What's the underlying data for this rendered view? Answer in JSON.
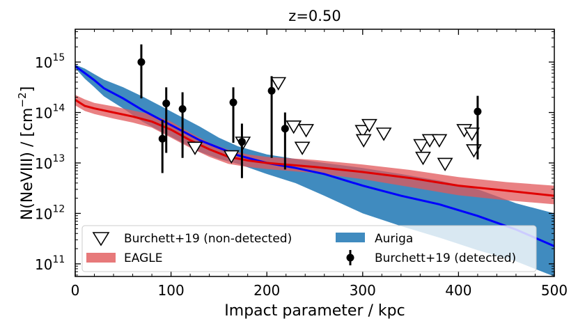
{
  "chart_data": {
    "type": "line",
    "title": "z=0.50",
    "xlabel": "Impact parameter / kpc",
    "ylabel": "N(NeVIII) / [cm",
    "ylabel_exponent": "−2",
    "ylabel_close": "]",
    "xlim": [
      0,
      500
    ],
    "ylim_log10": [
      10.75,
      15.65
    ],
    "x_ticks": [
      0,
      100,
      200,
      300,
      400,
      500
    ],
    "x_tick_labels": [
      "0",
      "100",
      "200",
      "300",
      "400",
      "500"
    ],
    "y_ticks_log10": [
      11,
      12,
      13,
      14,
      15
    ],
    "y_tick_base": "10",
    "y_tick_exponents": [
      "11",
      "12",
      "13",
      "14",
      "15"
    ],
    "series": [
      {
        "name": "Auriga",
        "kind": "band+median",
        "band_color": "#1f77b4",
        "line_color": "#0000ff",
        "x": [
          0,
          10,
          20,
          30,
          50,
          70,
          90,
          110,
          130,
          150,
          170,
          200,
          230,
          260,
          300,
          340,
          380,
          420,
          460,
          500
        ],
        "median": [
          14.92,
          14.78,
          14.64,
          14.48,
          14.28,
          14.05,
          13.85,
          13.65,
          13.45,
          13.3,
          13.15,
          13.0,
          12.9,
          12.78,
          12.55,
          12.35,
          12.18,
          11.95,
          11.68,
          11.35
        ],
        "upper": [
          14.95,
          14.87,
          14.76,
          14.65,
          14.5,
          14.32,
          14.12,
          13.92,
          13.72,
          13.5,
          13.33,
          13.17,
          13.08,
          13.0,
          12.9,
          12.78,
          12.65,
          12.48,
          12.2,
          12.0
        ],
        "lower": [
          14.88,
          14.67,
          14.5,
          14.32,
          14.08,
          13.82,
          13.62,
          13.42,
          13.22,
          13.08,
          12.98,
          12.78,
          12.6,
          12.35,
          12.0,
          11.75,
          11.52,
          11.27,
          11.05,
          10.75
        ]
      },
      {
        "name": "EAGLE",
        "kind": "band+median",
        "band_color": "#e15759",
        "line_color": "#e00000",
        "x": [
          0,
          10,
          20,
          40,
          60,
          80,
          100,
          120,
          140,
          160,
          180,
          200,
          250,
          300,
          350,
          400,
          450,
          500
        ],
        "median": [
          14.25,
          14.13,
          14.08,
          14.0,
          13.92,
          13.82,
          13.66,
          13.45,
          13.27,
          13.12,
          13.05,
          13.0,
          12.92,
          12.82,
          12.7,
          12.55,
          12.45,
          12.35
        ],
        "upper": [
          14.35,
          14.26,
          14.19,
          14.12,
          14.04,
          13.96,
          13.82,
          13.6,
          13.4,
          13.26,
          13.17,
          13.12,
          13.06,
          12.97,
          12.86,
          12.72,
          12.62,
          12.55
        ],
        "lower": [
          14.14,
          14.03,
          13.97,
          13.88,
          13.8,
          13.7,
          13.5,
          13.3,
          13.12,
          12.98,
          12.92,
          12.88,
          12.8,
          12.68,
          12.52,
          12.36,
          12.26,
          12.18
        ]
      }
    ],
    "detected": {
      "name": "Burchett+19 (detected)",
      "points": [
        {
          "x": 69,
          "y": 15.0,
          "lo": 14.28,
          "hi": 15.35
        },
        {
          "x": 91,
          "y": 13.48,
          "lo": 12.8,
          "hi": 13.85
        },
        {
          "x": 95,
          "y": 14.18,
          "lo": 13.2,
          "hi": 14.5
        },
        {
          "x": 112,
          "y": 14.07,
          "lo": 13.1,
          "hi": 14.4
        },
        {
          "x": 165,
          "y": 14.2,
          "lo": 13.4,
          "hi": 14.5
        },
        {
          "x": 174,
          "y": 13.42,
          "lo": 12.7,
          "hi": 13.78
        },
        {
          "x": 205,
          "y": 14.43,
          "lo": 13.1,
          "hi": 14.72
        },
        {
          "x": 219,
          "y": 13.68,
          "lo": 12.87,
          "hi": 14.0
        },
        {
          "x": 420,
          "y": 14.02,
          "lo": 13.07,
          "hi": 14.33
        }
      ]
    },
    "non_detected": {
      "name": "Burchett+19 (non-detected)",
      "points": [
        {
          "x": 125,
          "y": 13.3
        },
        {
          "x": 163,
          "y": 13.13
        },
        {
          "x": 175,
          "y": 13.4
        },
        {
          "x": 212,
          "y": 14.58
        },
        {
          "x": 228,
          "y": 13.72
        },
        {
          "x": 241,
          "y": 13.65
        },
        {
          "x": 237,
          "y": 13.3
        },
        {
          "x": 300,
          "y": 13.63
        },
        {
          "x": 301,
          "y": 13.45
        },
        {
          "x": 307,
          "y": 13.75
        },
        {
          "x": 322,
          "y": 13.58
        },
        {
          "x": 361,
          "y": 13.35
        },
        {
          "x": 363,
          "y": 13.1
        },
        {
          "x": 370,
          "y": 13.45
        },
        {
          "x": 380,
          "y": 13.45
        },
        {
          "x": 386,
          "y": 12.98
        },
        {
          "x": 406,
          "y": 13.65
        },
        {
          "x": 414,
          "y": 13.58
        },
        {
          "x": 416,
          "y": 13.25
        }
      ]
    },
    "legend": {
      "placement": "lower-center",
      "entries": [
        {
          "key": "non-detected",
          "label": "Burchett+19 (non-detected)"
        },
        {
          "key": "auriga",
          "label": "Auriga"
        },
        {
          "key": "eagle",
          "label": "EAGLE"
        },
        {
          "key": "detected",
          "label": "Burchett+19 (detected)"
        }
      ]
    }
  }
}
